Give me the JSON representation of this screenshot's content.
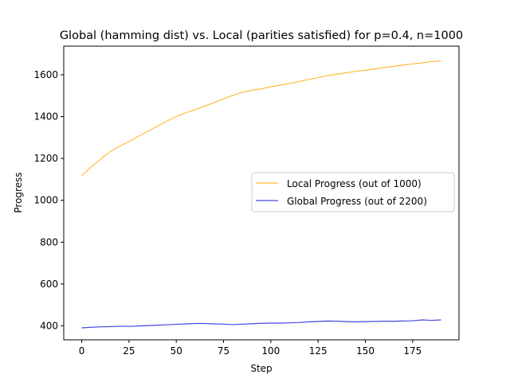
{
  "chart_data": {
    "type": "line",
    "title": "Global (hamming dist) vs. Local (parities satisfied) for p=0.4, n=1000",
    "xlabel": "Step",
    "ylabel": "Progress",
    "xlim": [
      -9.5,
      199.5
    ],
    "ylim": [
      333,
      1737
    ],
    "xticks": [
      0,
      25,
      50,
      75,
      100,
      125,
      150,
      175
    ],
    "yticks": [
      400,
      600,
      800,
      1000,
      1200,
      1400,
      1600
    ],
    "grid": false,
    "legend_position": "center right",
    "series": [
      {
        "name": "Local Progress (out of 1000)",
        "color": "#FFB428",
        "x": [
          0,
          5,
          10,
          15,
          20,
          25,
          30,
          35,
          40,
          45,
          50,
          55,
          60,
          65,
          70,
          75,
          80,
          85,
          90,
          95,
          100,
          105,
          110,
          115,
          120,
          125,
          130,
          135,
          140,
          145,
          150,
          155,
          160,
          165,
          170,
          175,
          180,
          185,
          190
        ],
        "y": [
          1118,
          1160,
          1197,
          1232,
          1258,
          1281,
          1306,
          1330,
          1355,
          1378,
          1401,
          1418,
          1434,
          1450,
          1467,
          1485,
          1502,
          1517,
          1526,
          1533,
          1543,
          1551,
          1559,
          1568,
          1578,
          1586,
          1597,
          1603,
          1610,
          1617,
          1622,
          1628,
          1635,
          1641,
          1647,
          1652,
          1657,
          1663,
          1666
        ]
      },
      {
        "name": "Global Progress (out of 2200)",
        "color": "#3333DD",
        "x": [
          0,
          5,
          10,
          15,
          20,
          25,
          30,
          35,
          40,
          45,
          50,
          55,
          60,
          65,
          70,
          75,
          80,
          85,
          90,
          95,
          100,
          105,
          110,
          115,
          120,
          125,
          130,
          135,
          140,
          145,
          150,
          155,
          160,
          165,
          170,
          175,
          180,
          185,
          190
        ],
        "y": [
          390,
          393,
          395,
          396,
          398,
          397,
          399,
          401,
          403,
          405,
          407,
          409,
          411,
          411,
          409,
          408,
          406,
          408,
          410,
          412,
          413,
          413,
          414,
          416,
          419,
          421,
          423,
          422,
          420,
          419,
          420,
          421,
          422,
          422,
          423,
          424,
          428,
          426,
          428
        ]
      }
    ]
  }
}
